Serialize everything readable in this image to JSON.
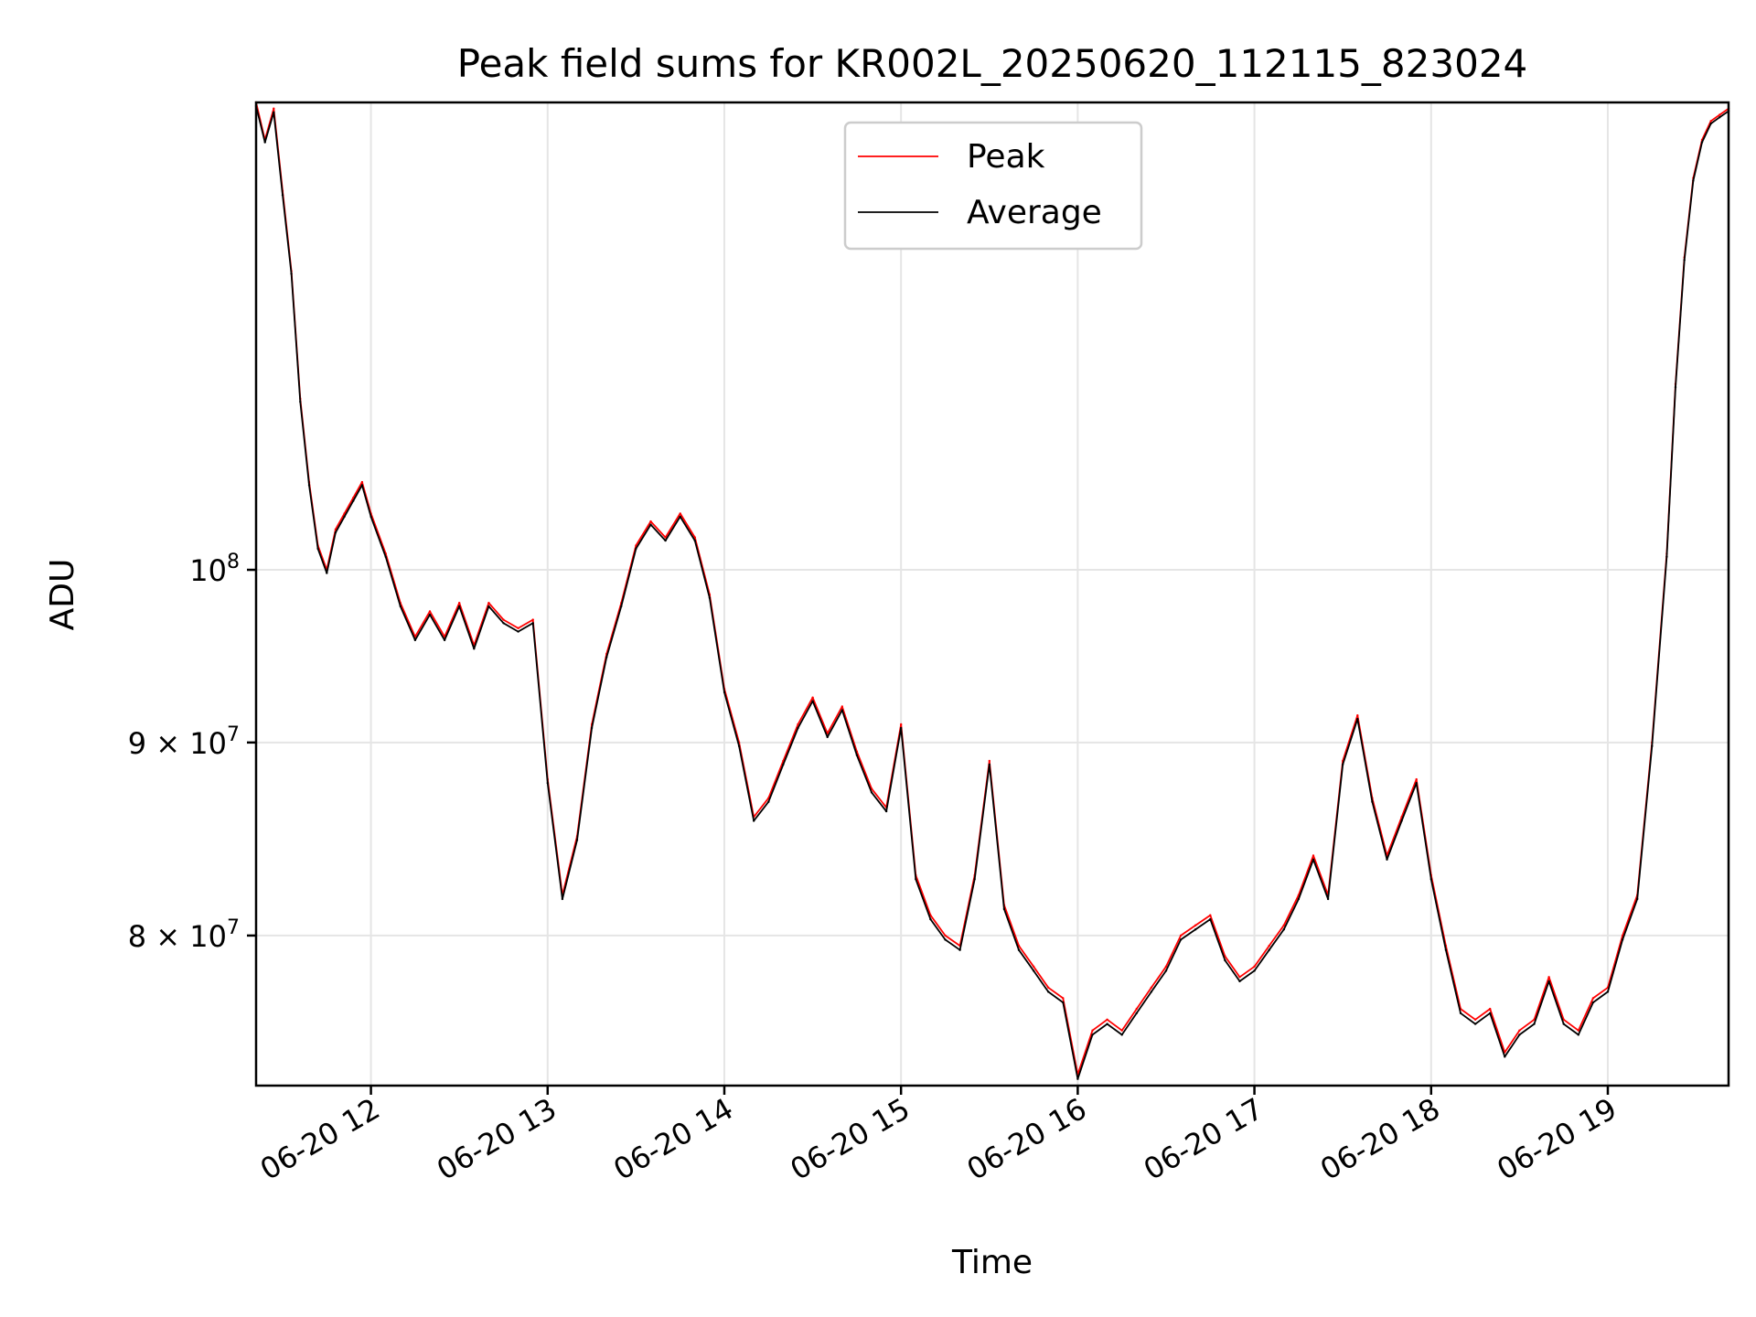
{
  "chart_data": {
    "type": "line",
    "title": "Peak field sums for KR002L_20250620_112115_823024",
    "xlabel": "Time",
    "ylabel": "ADU",
    "y_scale": "log",
    "xlim": [
      "06-20 11:21",
      "06-20 19:41"
    ],
    "ylim": [
      73000000,
      133000000
    ],
    "grid": true,
    "legend_position": "upper center",
    "x_ticks": [
      {
        "label": "06-20 12",
        "value": "06-20 12:00"
      },
      {
        "label": "06-20 13",
        "value": "06-20 13:00"
      },
      {
        "label": "06-20 14",
        "value": "06-20 14:00"
      },
      {
        "label": "06-20 15",
        "value": "06-20 15:00"
      },
      {
        "label": "06-20 16",
        "value": "06-20 16:00"
      },
      {
        "label": "06-20 17",
        "value": "06-20 17:00"
      },
      {
        "label": "06-20 18",
        "value": "06-20 18:00"
      },
      {
        "label": "06-20 19",
        "value": "06-20 19:00"
      }
    ],
    "y_ticks": [
      {
        "base": "10",
        "exp": "8",
        "value": 100000000
      },
      {
        "base": "9 × 10",
        "exp": "7",
        "value": 90000000
      },
      {
        "base": "8 × 10",
        "exp": "7",
        "value": 80000000
      }
    ],
    "x": [
      "11:21",
      "11:24",
      "11:27",
      "11:30",
      "11:33",
      "11:36",
      "11:39",
      "11:42",
      "11:45",
      "11:48",
      "11:51",
      "11:54",
      "11:57",
      "12:00",
      "12:05",
      "12:10",
      "12:15",
      "12:20",
      "12:25",
      "12:30",
      "12:35",
      "12:40",
      "12:45",
      "12:50",
      "12:55",
      "13:00",
      "13:05",
      "13:10",
      "13:15",
      "13:20",
      "13:25",
      "13:30",
      "13:35",
      "13:40",
      "13:45",
      "13:50",
      "13:55",
      "14:00",
      "14:05",
      "14:10",
      "14:15",
      "14:20",
      "14:25",
      "14:30",
      "14:35",
      "14:40",
      "14:45",
      "14:50",
      "14:55",
      "15:00",
      "15:05",
      "15:10",
      "15:15",
      "15:20",
      "15:25",
      "15:30",
      "15:35",
      "15:40",
      "15:45",
      "15:50",
      "15:55",
      "16:00",
      "16:05",
      "16:10",
      "16:15",
      "16:20",
      "16:25",
      "16:30",
      "16:35",
      "16:40",
      "16:45",
      "16:50",
      "16:55",
      "17:00",
      "17:05",
      "17:10",
      "17:15",
      "17:20",
      "17:25",
      "17:30",
      "17:35",
      "17:40",
      "17:45",
      "17:50",
      "17:55",
      "18:00",
      "18:05",
      "18:10",
      "18:15",
      "18:20",
      "18:25",
      "18:30",
      "18:35",
      "18:40",
      "18:45",
      "18:50",
      "18:55",
      "19:00",
      "19:05",
      "19:10",
      "19:15",
      "19:20",
      "19:23",
      "19:26",
      "19:29",
      "19:32",
      "19:35",
      "19:38",
      "19:41"
    ],
    "series": [
      {
        "name": "Peak",
        "color": "#ff0000",
        "values": [
          133000000,
          130000000,
          132500000,
          126000000,
          120000000,
          111000000,
          105500000,
          101500000,
          100000000,
          102500000,
          103500000,
          104500000,
          105500000,
          103500000,
          101000000,
          98000000,
          96000000,
          97500000,
          96000000,
          98000000,
          95500000,
          98000000,
          97000000,
          96500000,
          97000000,
          88000000,
          82000000,
          85000000,
          91000000,
          95000000,
          98000000,
          101500000,
          103000000,
          102000000,
          103500000,
          102000000,
          98500000,
          93000000,
          90000000,
          86000000,
          87000000,
          89000000,
          91000000,
          92500000,
          90500000,
          92000000,
          89500000,
          87500000,
          86500000,
          91000000,
          83000000,
          81000000,
          80000000,
          79500000,
          83000000,
          89000000,
          81500000,
          79500000,
          78500000,
          77500000,
          77000000,
          73500000,
          75500000,
          76000000,
          75500000,
          76500000,
          77500000,
          78500000,
          80000000,
          80500000,
          81000000,
          79000000,
          78000000,
          78500000,
          79500000,
          80500000,
          82000000,
          84000000,
          82000000,
          89000000,
          91500000,
          87000000,
          84000000,
          86000000,
          88000000,
          83000000,
          79500000,
          76500000,
          76000000,
          76500000,
          74500000,
          75500000,
          76000000,
          78000000,
          76000000,
          75500000,
          77000000,
          77500000,
          80000000,
          82000000,
          90000000,
          101000000,
          112000000,
          121000000,
          127000000,
          130000000,
          131500000,
          132000000,
          132500000
        ]
      },
      {
        "name": "Average",
        "color": "#000000",
        "values": [
          132700000,
          129800000,
          132200000,
          125700000,
          119800000,
          110800000,
          105300000,
          101300000,
          99800000,
          102300000,
          103300000,
          104300000,
          105300000,
          103300000,
          100800000,
          97800000,
          95800000,
          97300000,
          95800000,
          97800000,
          95300000,
          97800000,
          96800000,
          96300000,
          96800000,
          87800000,
          81800000,
          84800000,
          90800000,
          94800000,
          97800000,
          101300000,
          102800000,
          101800000,
          103300000,
          101800000,
          98300000,
          92800000,
          89800000,
          85800000,
          86800000,
          88800000,
          90800000,
          92300000,
          90300000,
          91800000,
          89300000,
          87300000,
          86300000,
          90800000,
          82800000,
          80800000,
          79800000,
          79300000,
          82800000,
          88800000,
          81300000,
          79300000,
          78300000,
          77300000,
          76800000,
          73300000,
          75300000,
          75800000,
          75300000,
          76300000,
          77300000,
          78300000,
          79800000,
          80300000,
          80800000,
          78800000,
          77800000,
          78300000,
          79300000,
          80300000,
          81800000,
          83800000,
          81800000,
          88800000,
          91300000,
          86800000,
          83800000,
          85800000,
          87800000,
          82800000,
          79300000,
          76300000,
          75800000,
          76300000,
          74300000,
          75300000,
          75800000,
          77800000,
          75800000,
          75300000,
          76800000,
          77300000,
          79800000,
          81800000,
          89800000,
          100800000,
          111800000,
          120800000,
          126800000,
          129800000,
          131300000,
          131800000,
          132300000
        ]
      }
    ]
  }
}
